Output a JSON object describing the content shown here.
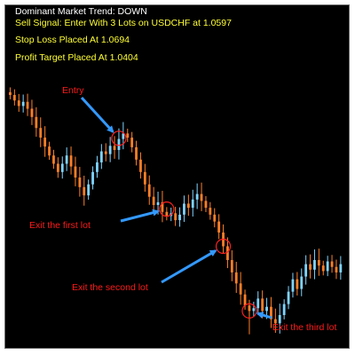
{
  "header": {
    "trend": "Dominant Market Trend: DOWN",
    "signal": "Sell Signal: Enter With 3 Lots on USDCHF at 1.0597",
    "stop_loss": "Stop Loss Placed At 1.0694",
    "profit_target": "Profit Target Placed At 1.0404"
  },
  "annotations": {
    "entry": "Entry",
    "exit_first": "Exit the first lot",
    "exit_second": "Exit the second lot",
    "exit_third": "Exit the third lot"
  },
  "colors": {
    "background": "#000000",
    "up_candle": "#7fd4ff",
    "down_candle": "#ff7f27",
    "arrow": "#3399ff",
    "circle": "#ff2020",
    "header_text": "#ffff33",
    "annotation_text": "#ff1a1a"
  },
  "chart_data": {
    "type": "candlestick",
    "symbol": "USDCHF",
    "closes": [
      1.066,
      1.0652,
      1.0644,
      1.065,
      1.064,
      1.0628,
      1.0612,
      1.0598,
      1.0585,
      1.0572,
      1.056,
      1.0548,
      1.056,
      1.0572,
      1.0556,
      1.054,
      1.0526,
      1.0514,
      1.053,
      1.0548,
      1.0562,
      1.0578,
      1.0574,
      1.0586,
      1.058,
      1.0596,
      1.0604,
      1.0598,
      1.0584,
      1.0566,
      1.0548,
      1.053,
      1.0512,
      1.05,
      1.0504,
      1.049,
      1.0484,
      1.0488,
      1.0478,
      1.0486,
      1.0502,
      1.0496,
      1.0508,
      1.0516,
      1.0506,
      1.0496,
      1.0486,
      1.0476,
      1.046,
      1.044,
      1.042,
      1.0402,
      1.0386,
      1.037,
      1.0354,
      1.0346,
      1.035,
      1.0364,
      1.0346,
      1.0352,
      1.0334,
      1.0328,
      1.034,
      1.0356,
      1.0374,
      1.0392,
      1.0378,
      1.0396,
      1.0414,
      1.0406,
      1.042,
      1.0412,
      1.0404,
      1.0418,
      1.041,
      1.0402,
      1.0414
    ],
    "ylim": [
      1.03,
      1.07
    ],
    "markers": [
      {
        "label_key": "entry",
        "index": 25,
        "price": 1.0597
      },
      {
        "label_key": "exit_first",
        "index": 36,
        "price": 1.0494
      },
      {
        "label_key": "exit_second",
        "index": 49,
        "price": 1.044
      },
      {
        "label_key": "exit_third",
        "index": 55,
        "price": 1.0346
      }
    ]
  }
}
